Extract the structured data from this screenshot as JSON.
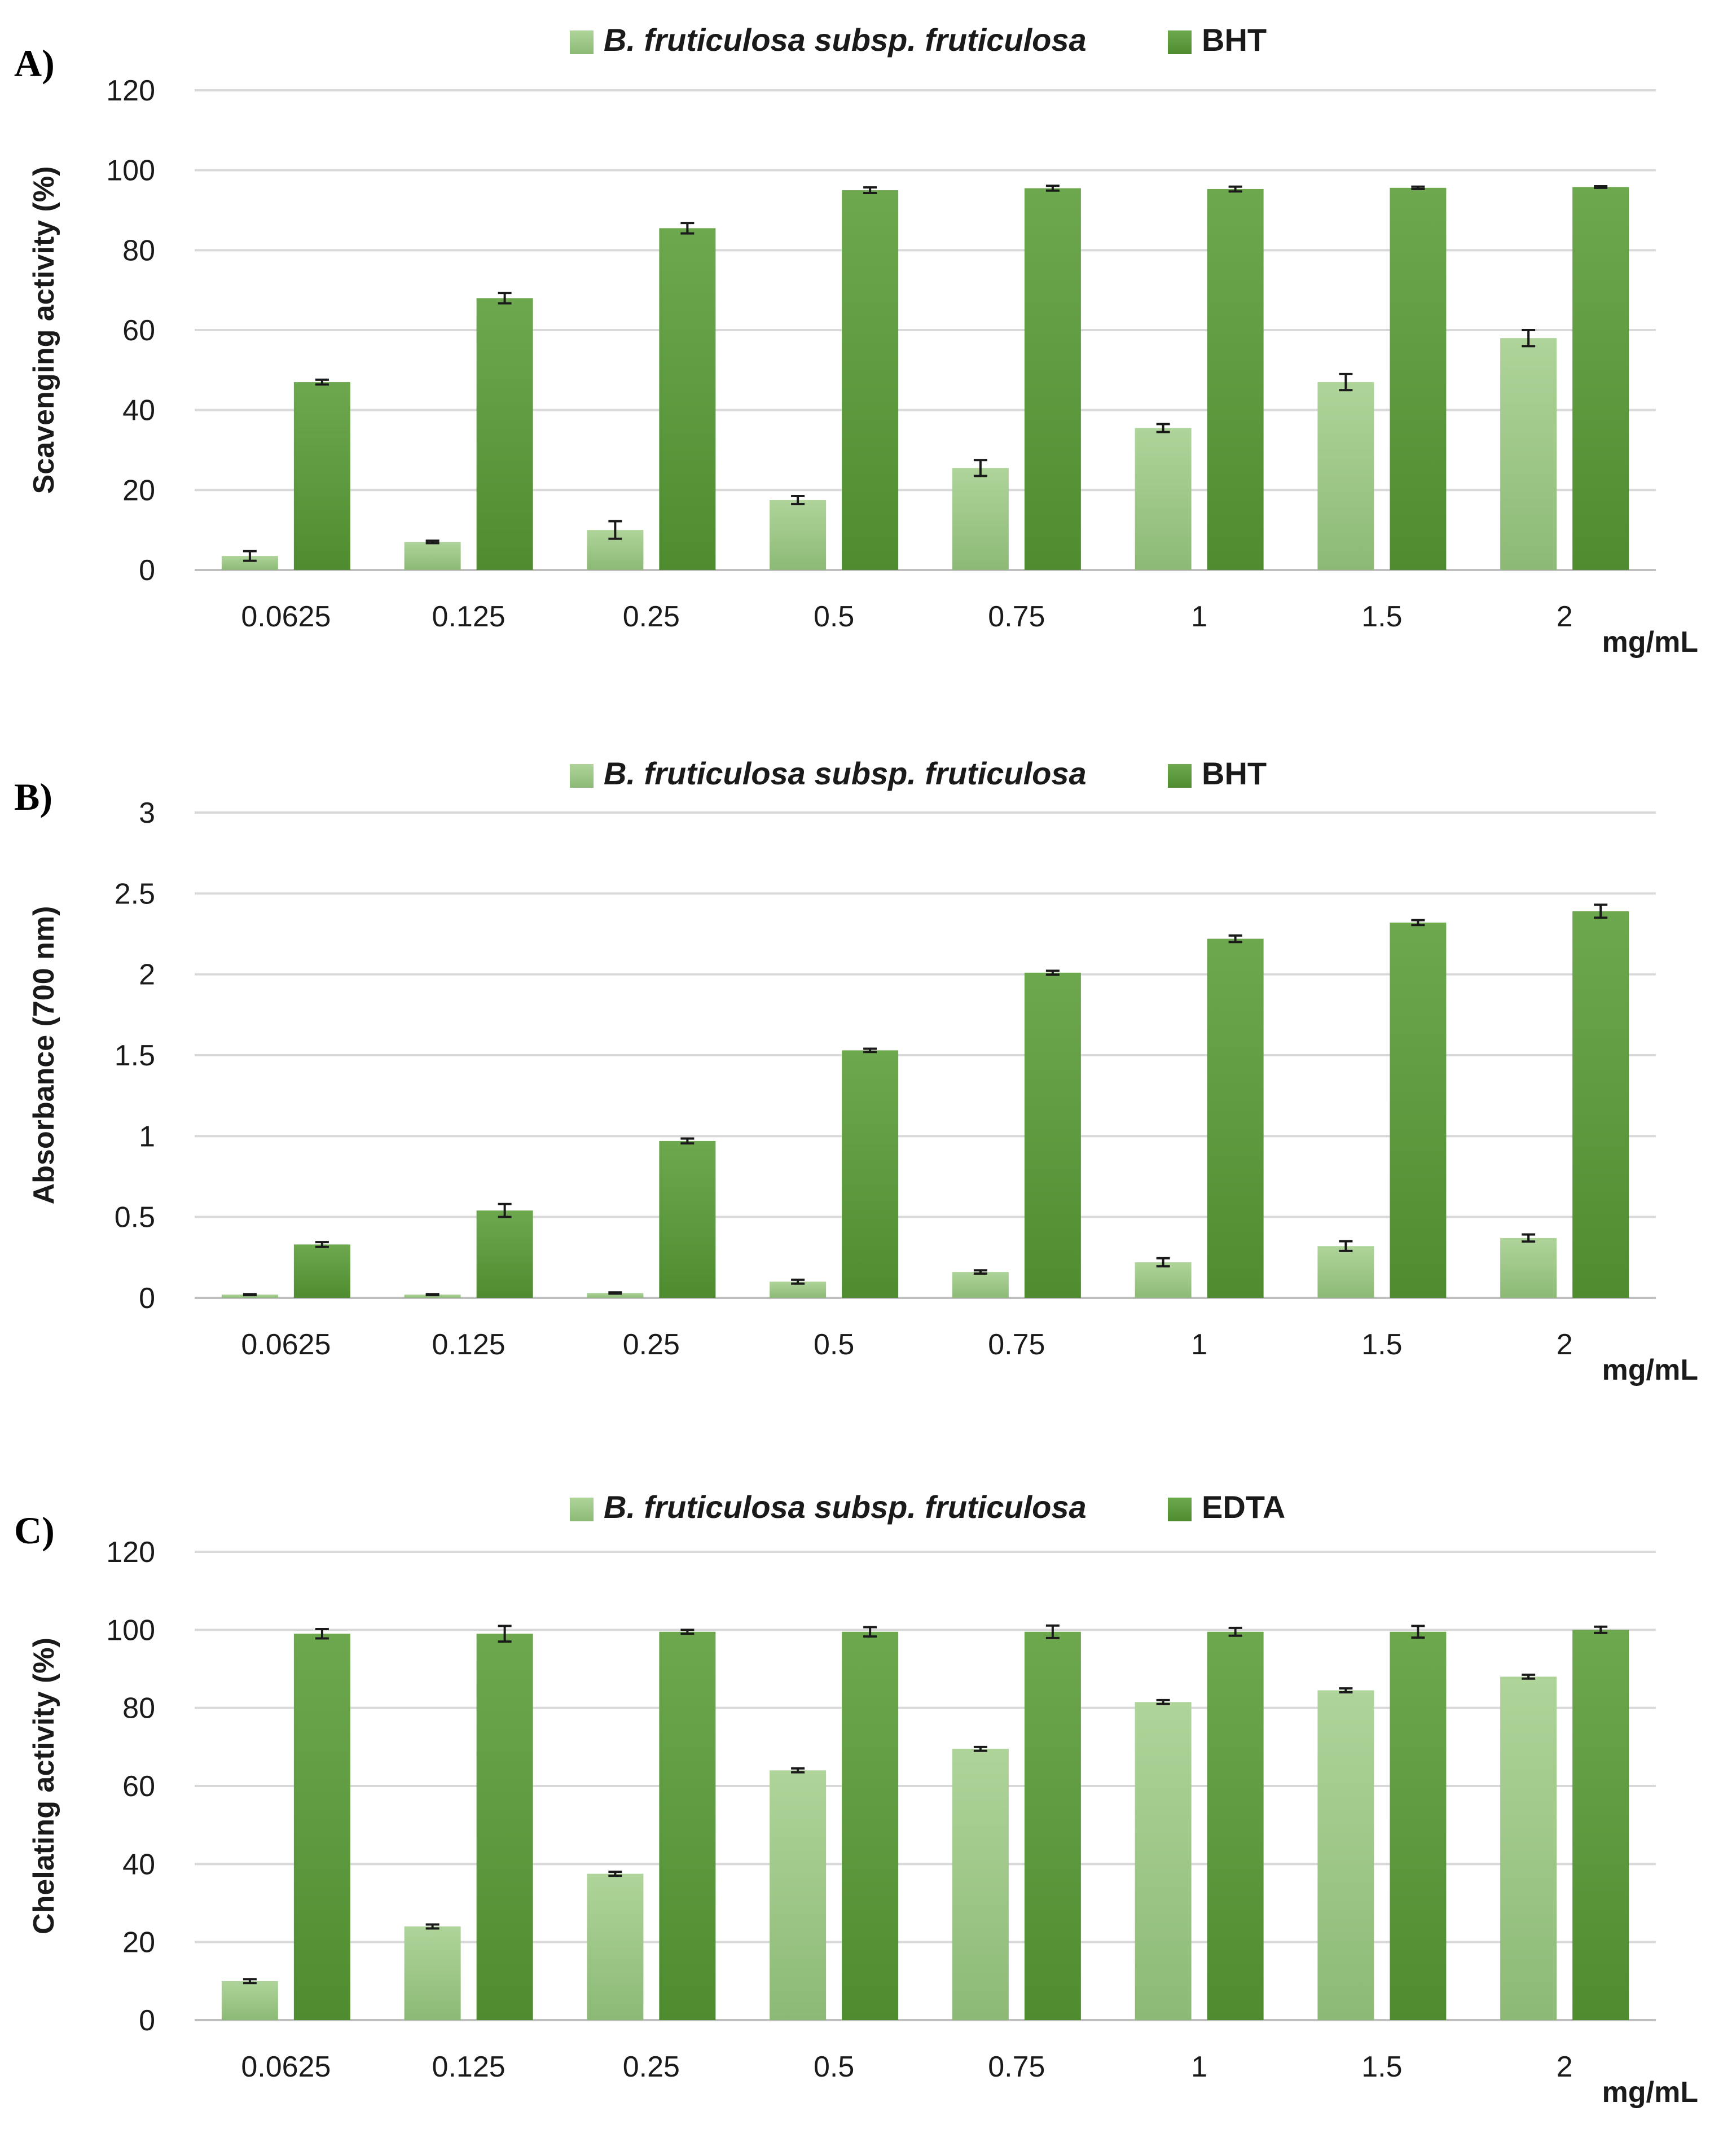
{
  "colors": {
    "sample": "#a3cb8e",
    "sample_dark": "#8fbc79",
    "reference": "#5f9e3f",
    "reference_dark": "#4f8a30"
  },
  "unit_label": "mg/mL",
  "chart_data": [
    {
      "type": "bar",
      "panel": "A)",
      "title": "",
      "ylabel": "Scavenging activity (%)",
      "xlabel": "mg/mL",
      "ylim": [
        0,
        120
      ],
      "yticks": [
        "0",
        "20",
        "40",
        "60",
        "80",
        "100",
        "120"
      ],
      "categories": [
        "0.0625",
        "0.125",
        "0.25",
        "0.5",
        "0.75",
        "1",
        "1.5",
        "2"
      ],
      "series": [
        {
          "name": "B. fruticulosa subsp. fruticulosa",
          "values": [
            3.5,
            7,
            10,
            17.5,
            25.5,
            35.5,
            47,
            58
          ],
          "errors": [
            1.2,
            0.3,
            2.2,
            1.0,
            2.0,
            1.0,
            2.0,
            2.0
          ]
        },
        {
          "name": "BHT",
          "values": [
            47,
            68,
            85.5,
            95,
            95.5,
            95.3,
            95.6,
            95.8
          ],
          "errors": [
            0.6,
            1.3,
            1.3,
            0.7,
            0.6,
            0.6,
            0.3,
            0.2
          ]
        }
      ]
    },
    {
      "type": "bar",
      "panel": "B)",
      "title": "",
      "ylabel": "Absorbance (700 nm)",
      "xlabel": "mg/mL",
      "ylim": [
        0,
        3
      ],
      "yticks": [
        "0",
        "0.5",
        "1",
        "1.5",
        "2",
        "2.5",
        "3"
      ],
      "categories": [
        "0.0625",
        "0.125",
        "0.25",
        "0.5",
        "0.75",
        "1",
        "1.5",
        "2"
      ],
      "series": [
        {
          "name": "B. fruticulosa subsp. fruticulosa",
          "values": [
            0.02,
            0.02,
            0.03,
            0.1,
            0.16,
            0.22,
            0.32,
            0.37
          ],
          "errors": [
            0.003,
            0.003,
            0.004,
            0.012,
            0.01,
            0.025,
            0.03,
            0.022
          ]
        },
        {
          "name": "BHT",
          "values": [
            0.33,
            0.54,
            0.97,
            1.53,
            2.01,
            2.22,
            2.32,
            2.39
          ],
          "errors": [
            0.015,
            0.04,
            0.015,
            0.01,
            0.012,
            0.02,
            0.015,
            0.04
          ]
        }
      ]
    },
    {
      "type": "bar",
      "panel": "C)",
      "title": "",
      "ylabel": "Chelating activity (%)",
      "xlabel": "mg/mL",
      "ylim": [
        0,
        120
      ],
      "yticks": [
        "0",
        "20",
        "40",
        "60",
        "80",
        "100",
        "120"
      ],
      "categories": [
        "0.0625",
        "0.125",
        "0.25",
        "0.5",
        "0.75",
        "1",
        "1.5",
        "2"
      ],
      "series": [
        {
          "name": "B. fruticulosa subsp. fruticulosa",
          "values": [
            10,
            24,
            37.5,
            64,
            69.5,
            81.5,
            84.5,
            88
          ],
          "errors": [
            0.5,
            0.5,
            0.5,
            0.5,
            0.5,
            0.5,
            0.5,
            0.5
          ]
        },
        {
          "name": "EDTA",
          "values": [
            99,
            99,
            99.5,
            99.5,
            99.5,
            99.5,
            99.5,
            100
          ],
          "errors": [
            1.2,
            2.0,
            0.5,
            1.2,
            1.6,
            1.0,
            1.5,
            0.8
          ]
        }
      ]
    }
  ]
}
